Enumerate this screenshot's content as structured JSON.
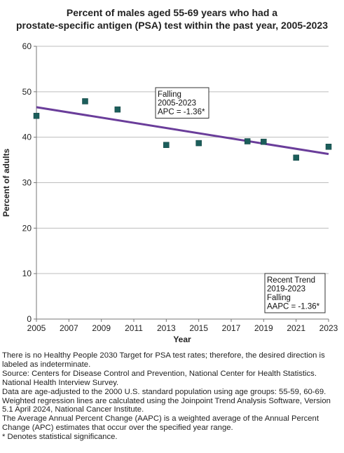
{
  "chart_data": {
    "type": "scatter",
    "title_lines": [
      "Percent of males aged 55-69 years who had a",
      "prostate-specific antigen (PSA) test within the past year, 2005-2023"
    ],
    "xlabel": "Year",
    "ylabel": "Percent of adults",
    "xlim": [
      2005,
      2023
    ],
    "ylim": [
      0,
      60
    ],
    "x_ticks": [
      "2005",
      "2007",
      "2009",
      "2011",
      "2013",
      "2015",
      "2017",
      "2019",
      "2021",
      "2023"
    ],
    "y_ticks": [
      "0",
      "10",
      "20",
      "30",
      "40",
      "50",
      "60"
    ],
    "grid": "horizontal",
    "points": [
      {
        "x": 2005,
        "y": 44.7
      },
      {
        "x": 2008,
        "y": 47.9
      },
      {
        "x": 2010,
        "y": 46.1
      },
      {
        "x": 2013,
        "y": 38.3
      },
      {
        "x": 2015,
        "y": 38.7
      },
      {
        "x": 2018,
        "y": 39.1
      },
      {
        "x": 2019,
        "y": 39.0
      },
      {
        "x": 2021,
        "y": 35.5
      },
      {
        "x": 2023,
        "y": 37.9
      }
    ],
    "trend_line": {
      "x": [
        2005,
        2023
      ],
      "y": [
        46.6,
        36.3
      ]
    },
    "annotations": [
      {
        "lines": [
          "Falling",
          "2005-2023",
          "APC = -1.36*"
        ],
        "position": "upper-middle"
      },
      {
        "lines": [
          "Recent Trend",
          "2019-2023",
          "Falling",
          "AAPC = -1.36*"
        ],
        "position": "lower-right"
      }
    ],
    "colors": {
      "points": "#1b5e5b",
      "trend": "#6a3d9a",
      "grid": "#bdbdbd",
      "axis": "#777777"
    }
  },
  "notes": [
    "There is no Healthy People 2030 Target for PSA test rates; therefore, the desired direction is labeled as indeterminate.",
    "Source: Centers for Disease Control and Prevention, National Center for Health Statistics. National Health Interview Survey.",
    "Data are age-adjusted to the 2000 U.S. standard population using age groups: 55-59, 60-69.",
    "Weighted regression lines are calculated using the Joinpoint Trend Analysis Software, Version 5.1 April 2024, National Cancer Institute.",
    "The Average Annual Percent Change (AAPC) is a weighted average of the Annual Percent Change (APC) estimates that occur over the specified year range.",
    "* Denotes statistical significance."
  ]
}
